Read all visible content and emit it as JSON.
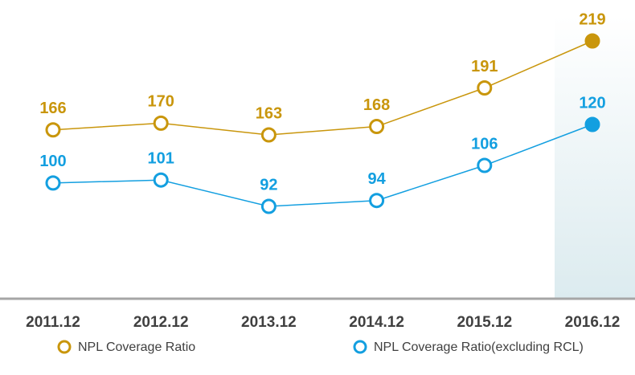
{
  "chart_data": {
    "type": "line",
    "categories": [
      "2011.12",
      "2012.12",
      "2013.12",
      "2014.12",
      "2015.12",
      "2016.12"
    ],
    "series": [
      {
        "name": "NPL Coverage Ratio",
        "color": "#C9960C",
        "values": [
          166,
          170,
          163,
          168,
          191,
          219
        ]
      },
      {
        "name": "NPL Coverage Ratio(excluding RCL)",
        "color": "#139FE0",
        "values": [
          100,
          101,
          92,
          94,
          106,
          120
        ]
      }
    ]
  }
}
